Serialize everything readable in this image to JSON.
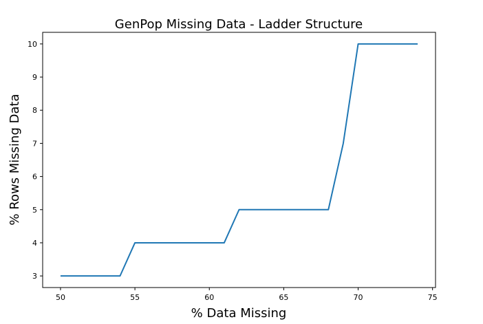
{
  "chart_data": {
    "type": "line",
    "title": "GenPop Missing Data - Ladder Structure",
    "xlabel": "% Data Missing",
    "ylabel": "% Rows Missing Data",
    "xlim": [
      48.8,
      75.2
    ],
    "ylim": [
      2.65,
      10.35
    ],
    "xticks": [
      50,
      55,
      60,
      65,
      70,
      75
    ],
    "yticks": [
      3,
      4,
      5,
      6,
      7,
      8,
      9,
      10
    ],
    "grid": false,
    "series": [
      {
        "color": "#1f77b4",
        "x": [
          50,
          51,
          52,
          53,
          54,
          55,
          56,
          57,
          58,
          59,
          60,
          61,
          62,
          63,
          64,
          65,
          66,
          67,
          68,
          69,
          70,
          71,
          72,
          73,
          74
        ],
        "y": [
          3,
          3,
          3,
          3,
          3,
          4,
          4,
          4,
          4,
          4,
          4,
          4,
          5,
          5,
          5,
          5,
          5,
          5,
          5,
          7,
          10,
          10,
          10,
          10,
          10
        ]
      }
    ]
  }
}
